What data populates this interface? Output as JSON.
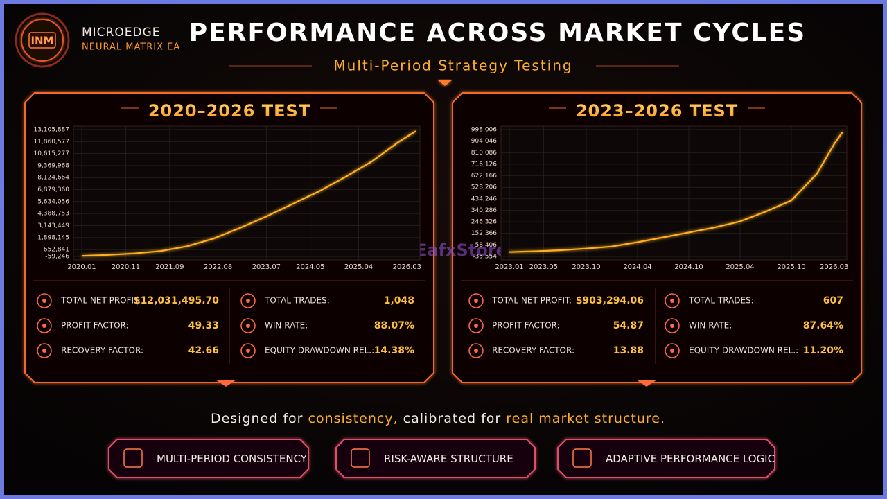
{
  "header": {
    "logo": "INM",
    "brand": "MICROEDGE",
    "brand_sub": "NEURAL MATRIX EA",
    "title": "PERFORMANCE ACROSS MARKET CYCLES",
    "subtitle": "Multi-Period Strategy Testing"
  },
  "chart_data": [
    {
      "type": "line",
      "title": "2020–2026 TEST",
      "color": "#ffb020",
      "x": [
        "2020.01",
        "2020.07",
        "2021.01",
        "2021.07",
        "2022.01",
        "2022.07",
        "2023.01",
        "2023.07",
        "2024.01",
        "2024.07",
        "2025.01",
        "2025.07",
        "2026.01",
        "2026.05"
      ],
      "values": [
        0,
        100000,
        250000,
        500000,
        1000000,
        1800000,
        2900000,
        4100000,
        5400000,
        6700000,
        8200000,
        9800000,
        11800000,
        12950000
      ],
      "ylim": [
        -59246,
        13105887
      ],
      "yticks": [
        {
          "value": -59246,
          "label": "-59,246"
        },
        {
          "value": 652841,
          "label": "652,841"
        },
        {
          "value": 1898145,
          "label": "1,898,145"
        },
        {
          "value": 3143449,
          "label": "3,143,449"
        },
        {
          "value": 4388753,
          "label": "4,388,753"
        },
        {
          "value": 5634056,
          "label": "5,634,056"
        },
        {
          "value": 6879360,
          "label": "6,879,360"
        },
        {
          "value": 8124664,
          "label": "8,124,664"
        },
        {
          "value": 9369968,
          "label": "9,369,968"
        },
        {
          "value": 10615277,
          "label": "10,615,277"
        },
        {
          "value": 11860577,
          "label": "11,860,577"
        },
        {
          "value": 13105887,
          "label": "13,105,887"
        }
      ],
      "xticks": [
        "2020.01",
        "2020.11",
        "2021.09",
        "2022.08",
        "2023.07",
        "2024.05",
        "2025.04",
        "2026.03"
      ],
      "grid": true
    },
    {
      "type": "line",
      "title": "2023–2026 TEST",
      "color": "#ffb020",
      "x": [
        "2023.01",
        "2023.04",
        "2023.07",
        "2023.10",
        "2024.01",
        "2024.04",
        "2024.07",
        "2024.10",
        "2025.01",
        "2025.04",
        "2025.07",
        "2025.10",
        "2026.01",
        "2026.03",
        "2026.04"
      ],
      "values": [
        0,
        6000,
        15000,
        28000,
        45000,
        80000,
        120000,
        160000,
        200000,
        250000,
        330000,
        420000,
        640000,
        880000,
        980000
      ],
      "ylim": [
        -35554,
        998006
      ],
      "yticks": [
        {
          "value": -35554,
          "label": "-35,554"
        },
        {
          "value": 58406,
          "label": "58,406"
        },
        {
          "value": 152366,
          "label": "152,366"
        },
        {
          "value": 246326,
          "label": "246,326"
        },
        {
          "value": 340286,
          "label": "340,286"
        },
        {
          "value": 434246,
          "label": "434,246"
        },
        {
          "value": 528206,
          "label": "528,206"
        },
        {
          "value": 622166,
          "label": "622,166"
        },
        {
          "value": 716126,
          "label": "716,126"
        },
        {
          "value": 810086,
          "label": "810,086"
        },
        {
          "value": 904046,
          "label": "904,046"
        },
        {
          "value": 998006,
          "label": "998,006"
        }
      ],
      "xticks": [
        "2023.01",
        "2023.05",
        "2023.10",
        "2024.04",
        "2024.10",
        "2025.04",
        "2025.10",
        "2026.03"
      ],
      "grid": true
    }
  ],
  "stats": [
    [
      {
        "label": "TOTAL NET PROFIT:",
        "value": "$12,031,495.70"
      },
      {
        "label": "PROFIT FACTOR:",
        "value": "49.33"
      },
      {
        "label": "RECOVERY FACTOR:",
        "value": "42.66"
      },
      {
        "label": "TOTAL TRADES:",
        "value": "1,048"
      },
      {
        "label": "WIN RATE:",
        "value": "88.07%"
      },
      {
        "label": "EQUITY DRAWDOWN REL.:",
        "value": "14.38%"
      }
    ],
    [
      {
        "label": "TOTAL NET PROFIT:",
        "value": "$903,294.06"
      },
      {
        "label": "PROFIT FACTOR:",
        "value": "54.87"
      },
      {
        "label": "RECOVERY FACTOR:",
        "value": "13.88"
      },
      {
        "label": "TOTAL TRADES:",
        "value": "607"
      },
      {
        "label": "WIN RATE:",
        "value": "87.64%"
      },
      {
        "label": "EQUITY DRAWDOWN REL.:",
        "value": "11.20%"
      }
    ]
  ],
  "watermark": "EafxStore",
  "tagline": [
    "Designed for",
    "consistency,",
    "calibrated for",
    "real market structure."
  ],
  "features": [
    "MULTI-PERIOD CONSISTENCY",
    "RISK-AWARE STRUCTURE",
    "ADAPTIVE PERFORMANCE LOGIC"
  ]
}
